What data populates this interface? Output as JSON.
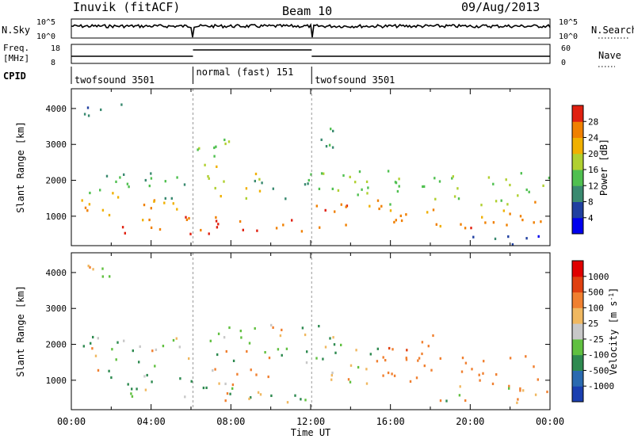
{
  "header": {
    "station": "Inuvik (fitACF)",
    "beam": "Beam 10",
    "date": "09/Aug/2013"
  },
  "top_panels": {
    "nsky": {
      "label": "N.Sky",
      "ticks": [
        "10^5",
        "10^0"
      ]
    },
    "nsearch": {
      "label": "N.Search",
      "ticks": [
        "10^5",
        "10^0"
      ]
    },
    "freq": {
      "label_line1": "Freq.",
      "label_line2": "[MHz]",
      "ticks": [
        "18",
        "8"
      ]
    },
    "nave": {
      "label": "Nave",
      "ticks": [
        "60",
        "0"
      ]
    },
    "cpid": {
      "label": "CPID",
      "segments": [
        {
          "name": "twofsound 3501",
          "start_hour": 0,
          "end_hour": 6.1
        },
        {
          "name": "normal (fast) 151",
          "start_hour": 6.1,
          "end_hour": 12.05
        },
        {
          "name": "twofsound 3501",
          "start_hour": 12.05,
          "end_hour": 24
        }
      ]
    }
  },
  "chart_data": [
    {
      "type": "heatmap",
      "title": "",
      "xlabel": "Time UT",
      "ylabel": "Slant Range [km]",
      "xlim": [
        0,
        24
      ],
      "ylim": [
        180,
        4550
      ],
      "x_ticks": [
        "00:00",
        "04:00",
        "08:00",
        "12:00",
        "16:00",
        "20:00",
        "00:00"
      ],
      "y_ticks": [
        1000,
        2000,
        3000,
        4000
      ],
      "colorbar": {
        "label": "Power [dB]",
        "ticks": [
          "4",
          "8",
          "12",
          "16",
          "20",
          "24",
          "28"
        ],
        "range": [
          0,
          30
        ],
        "colors": [
          "#0000ee",
          "#2040a0",
          "#3a8a70",
          "#50c050",
          "#b0d030",
          "#f0b000",
          "#f08000",
          "#e02010"
        ]
      },
      "regions": [
        {
          "t": [
            0.3,
            5.9
          ],
          "r": [
            1500,
            2300
          ],
          "v": 12
        },
        {
          "t": [
            0.3,
            5.9
          ],
          "r": [
            900,
            1700
          ],
          "v": 22
        },
        {
          "t": [
            2.5,
            6.0
          ],
          "r": [
            500,
            1100
          ],
          "v": 27
        },
        {
          "t": [
            0.4,
            3.0
          ],
          "r": [
            3800,
            4300
          ],
          "v": 8
        },
        {
          "t": [
            6.2,
            12.0
          ],
          "r": [
            500,
            1100
          ],
          "v": 26
        },
        {
          "t": [
            6.5,
            9.5
          ],
          "r": [
            1500,
            2500
          ],
          "v": 18
        },
        {
          "t": [
            6.2,
            8.5
          ],
          "r": [
            2700,
            3600
          ],
          "v": 14
        },
        {
          "t": [
            9.0,
            12.0
          ],
          "r": [
            1500,
            2200
          ],
          "v": 10
        },
        {
          "t": [
            12.2,
            24.0
          ],
          "r": [
            700,
            1500
          ],
          "v": 24
        },
        {
          "t": [
            12.2,
            24.0
          ],
          "r": [
            1300,
            2300
          ],
          "v": 14
        },
        {
          "t": [
            12.2,
            13.5
          ],
          "r": [
            2500,
            3700
          ],
          "v": 12
        },
        {
          "t": [
            18.5,
            24.0
          ],
          "r": [
            200,
            500
          ],
          "v": 6
        }
      ]
    },
    {
      "type": "heatmap",
      "title": "",
      "xlabel": "Time UT",
      "ylabel": "Slant Range [km]",
      "xlim": [
        0,
        24
      ],
      "ylim": [
        180,
        4550
      ],
      "x_ticks": [
        "00:00",
        "04:00",
        "08:00",
        "12:00",
        "16:00",
        "20:00",
        "00:00"
      ],
      "y_ticks": [
        1000,
        2000,
        3000,
        4000
      ],
      "colorbar": {
        "label": "Velocity [m s^-1]",
        "ticks": [
          "1000",
          "500",
          "100",
          "25",
          "-25",
          "-100",
          "-500",
          "-1000"
        ],
        "range": [
          -1000,
          1000
        ],
        "colors": [
          "#1a3fb0",
          "#2a6ab0",
          "#2e8a50",
          "#60c040",
          "#c8c8c8",
          "#f0b860",
          "#f08030",
          "#e04010",
          "#e00000"
        ]
      },
      "regions": [
        {
          "t": [
            0.3,
            6.0
          ],
          "r": [
            1300,
            2300
          ],
          "v": 0
        },
        {
          "t": [
            1.5,
            6.0
          ],
          "r": [
            500,
            1300
          ],
          "v": 120
        },
        {
          "t": [
            0.4,
            3.0
          ],
          "r": [
            3700,
            4300
          ],
          "v": 0
        },
        {
          "t": [
            6.2,
            12.0
          ],
          "r": [
            400,
            1100
          ],
          "v": 40
        },
        {
          "t": [
            7.0,
            10.5
          ],
          "r": [
            900,
            1500
          ],
          "v": -150
        },
        {
          "t": [
            6.2,
            12.0
          ],
          "r": [
            1500,
            2600
          ],
          "v": 0
        },
        {
          "t": [
            12.2,
            15.5
          ],
          "r": [
            900,
            2600
          ],
          "v": 0
        },
        {
          "t": [
            15.5,
            24.0
          ],
          "r": [
            800,
            1700
          ],
          "v": -300
        },
        {
          "t": [
            15.5,
            19.0
          ],
          "r": [
            1600,
            2300
          ],
          "v": -400
        },
        {
          "t": [
            18.0,
            24.0
          ],
          "r": [
            400,
            900
          ],
          "v": 0
        }
      ]
    }
  ]
}
